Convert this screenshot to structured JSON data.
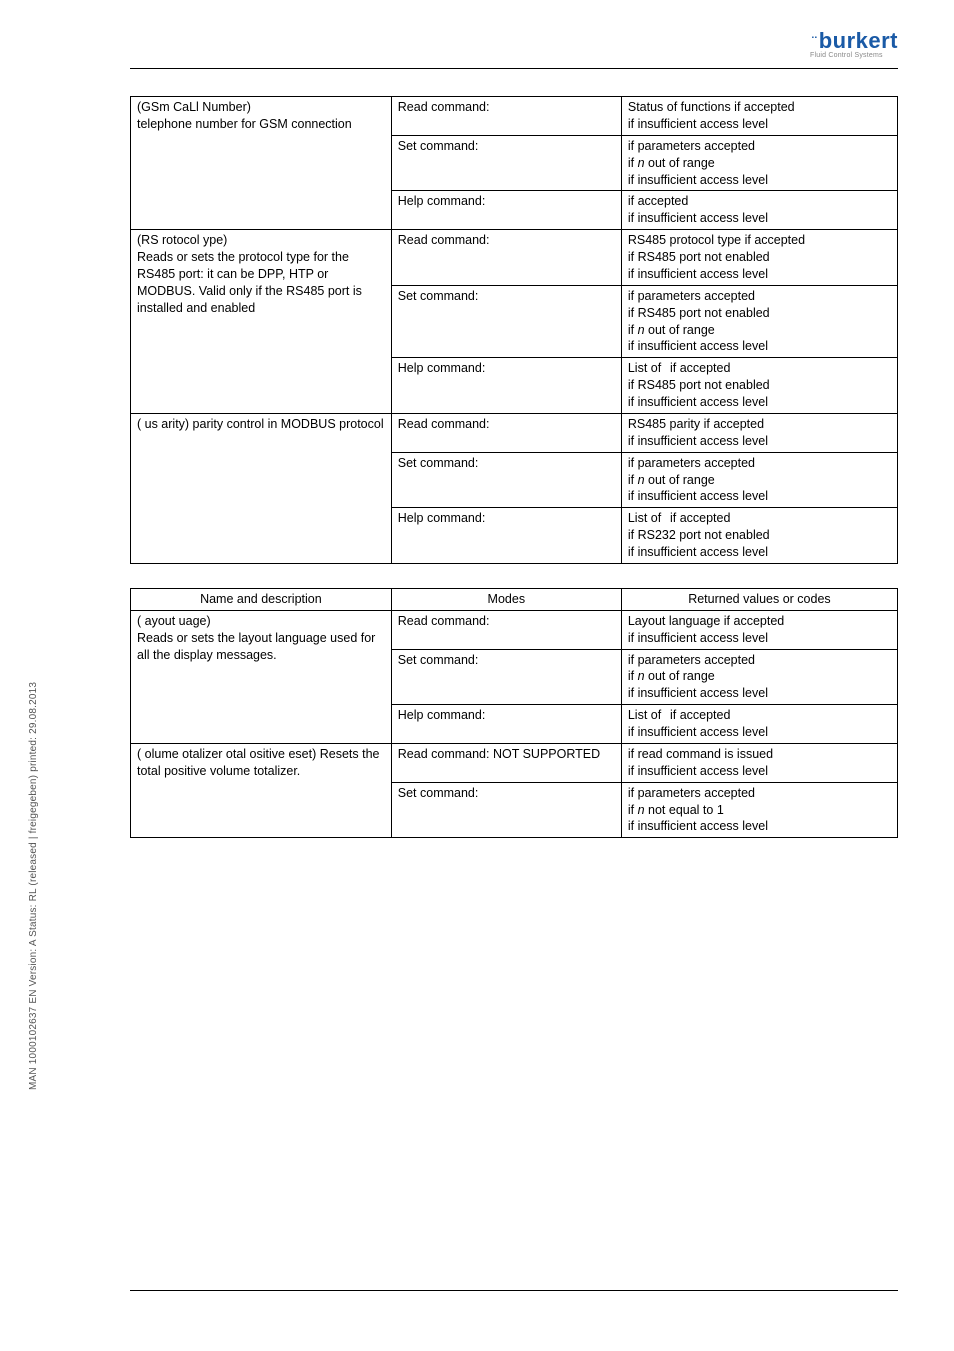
{
  "sidetext": "MAN 1000102637 EN Version: A Status: RL (released | freigegeben) printed: 29.08.2013",
  "logo": {
    "main": "burkert",
    "sub": "Fluid Control Systems"
  },
  "table1": {
    "rows": [
      {
        "c1_lines": [
          " (GSm CaLl Number)",
          "telephone number for GSM connection"
        ],
        "c2": "Read command:",
        "c3_lines": [
          "Status of functions if accepted",
          " if insufficient access level"
        ]
      },
      {
        "c1_lines": [
          ""
        ],
        "c2": "Set command:",
        "c3_lines": [
          " if parameters accepted",
          " if n out of range",
          " if insufficient access level"
        ]
      },
      {
        "c1_lines": [
          ""
        ],
        "c2": "Help command:",
        "c3_lines": [
          " if accepted",
          " if insufficient access level"
        ]
      },
      {
        "c1_lines": [
          " (RS rotocol ype)",
          "Reads or sets the protocol type for the RS485 port: it can be DPP, HTP or MODBUS. Valid only if the RS485 port is installed and enabled"
        ],
        "c2": "Read command:",
        "c3_lines": [
          "RS485 protocol type if accepted",
          " if RS485 port not enabled",
          " if insufficient access level"
        ]
      },
      {
        "c1_lines": [
          ""
        ],
        "c2": "Set command:",
        "c3_lines": [
          " if parameters accepted",
          " if RS485 port not enabled",
          " if n out of range",
          " if insufficient access level"
        ]
      },
      {
        "c1_lines": [
          ""
        ],
        "c2": "Help command:",
        "c3_lines": [
          "List of  if accepted",
          " if RS485 port not enabled",
          " if insufficient access level"
        ]
      },
      {
        "c1_lines": [
          " ( us arity) parity control in MODBUS protocol"
        ],
        "c2": "Read command:",
        "c3_lines": [
          "RS485 parity if accepted",
          " if insufficient access level"
        ]
      },
      {
        "c1_lines": [
          ""
        ],
        "c2": "Set command:",
        "c3_lines": [
          " if parameters accepted",
          " if n out of range",
          " if insufficient access level"
        ]
      },
      {
        "c1_lines": [
          ""
        ],
        "c2": "Help command:",
        "c3_lines": [
          "List of  if accepted",
          " if RS232 port not enabled",
          " if insufficient access level"
        ]
      }
    ],
    "groups": [
      {
        "start": 0,
        "span": 3
      },
      {
        "start": 3,
        "span": 3
      },
      {
        "start": 6,
        "span": 3
      }
    ]
  },
  "table2": {
    "header": {
      "c1": "Name and description",
      "c2": "Modes",
      "c3": "Returned values or codes"
    },
    "rows": [
      {
        "c1_lines": [
          " ( ayout uage)",
          "Reads or sets the layout language used for all the display messages."
        ],
        "c2": "Read command:",
        "c3_lines": [
          "Layout language if accepted",
          " if insufficient access level"
        ]
      },
      {
        "c1_lines": [
          ""
        ],
        "c2": "Set command:",
        "c3_lines": [
          " if parameters accepted",
          " if n out of range",
          " if insufficient access level"
        ]
      },
      {
        "c1_lines": [
          ""
        ],
        "c2": "Help command:",
        "c3_lines": [
          "List of  if accepted",
          " if insufficient access level"
        ]
      },
      {
        "c1_lines": [
          " ( olume otalizer otal ositive eset) Resets the total positive volume totalizer."
        ],
        "c2": "Read command: NOT SUPPORTED",
        "c3_lines": [
          " if read command is issued",
          " if insufficient access level"
        ]
      },
      {
        "c1_lines": [
          ""
        ],
        "c2": "Set command:",
        "c3_lines": [
          " if parameters accepted",
          " if n not equal to 1",
          " if insufficient access level"
        ]
      }
    ],
    "groups": [
      {
        "start": 0,
        "span": 3
      },
      {
        "start": 3,
        "span": 2
      }
    ]
  }
}
